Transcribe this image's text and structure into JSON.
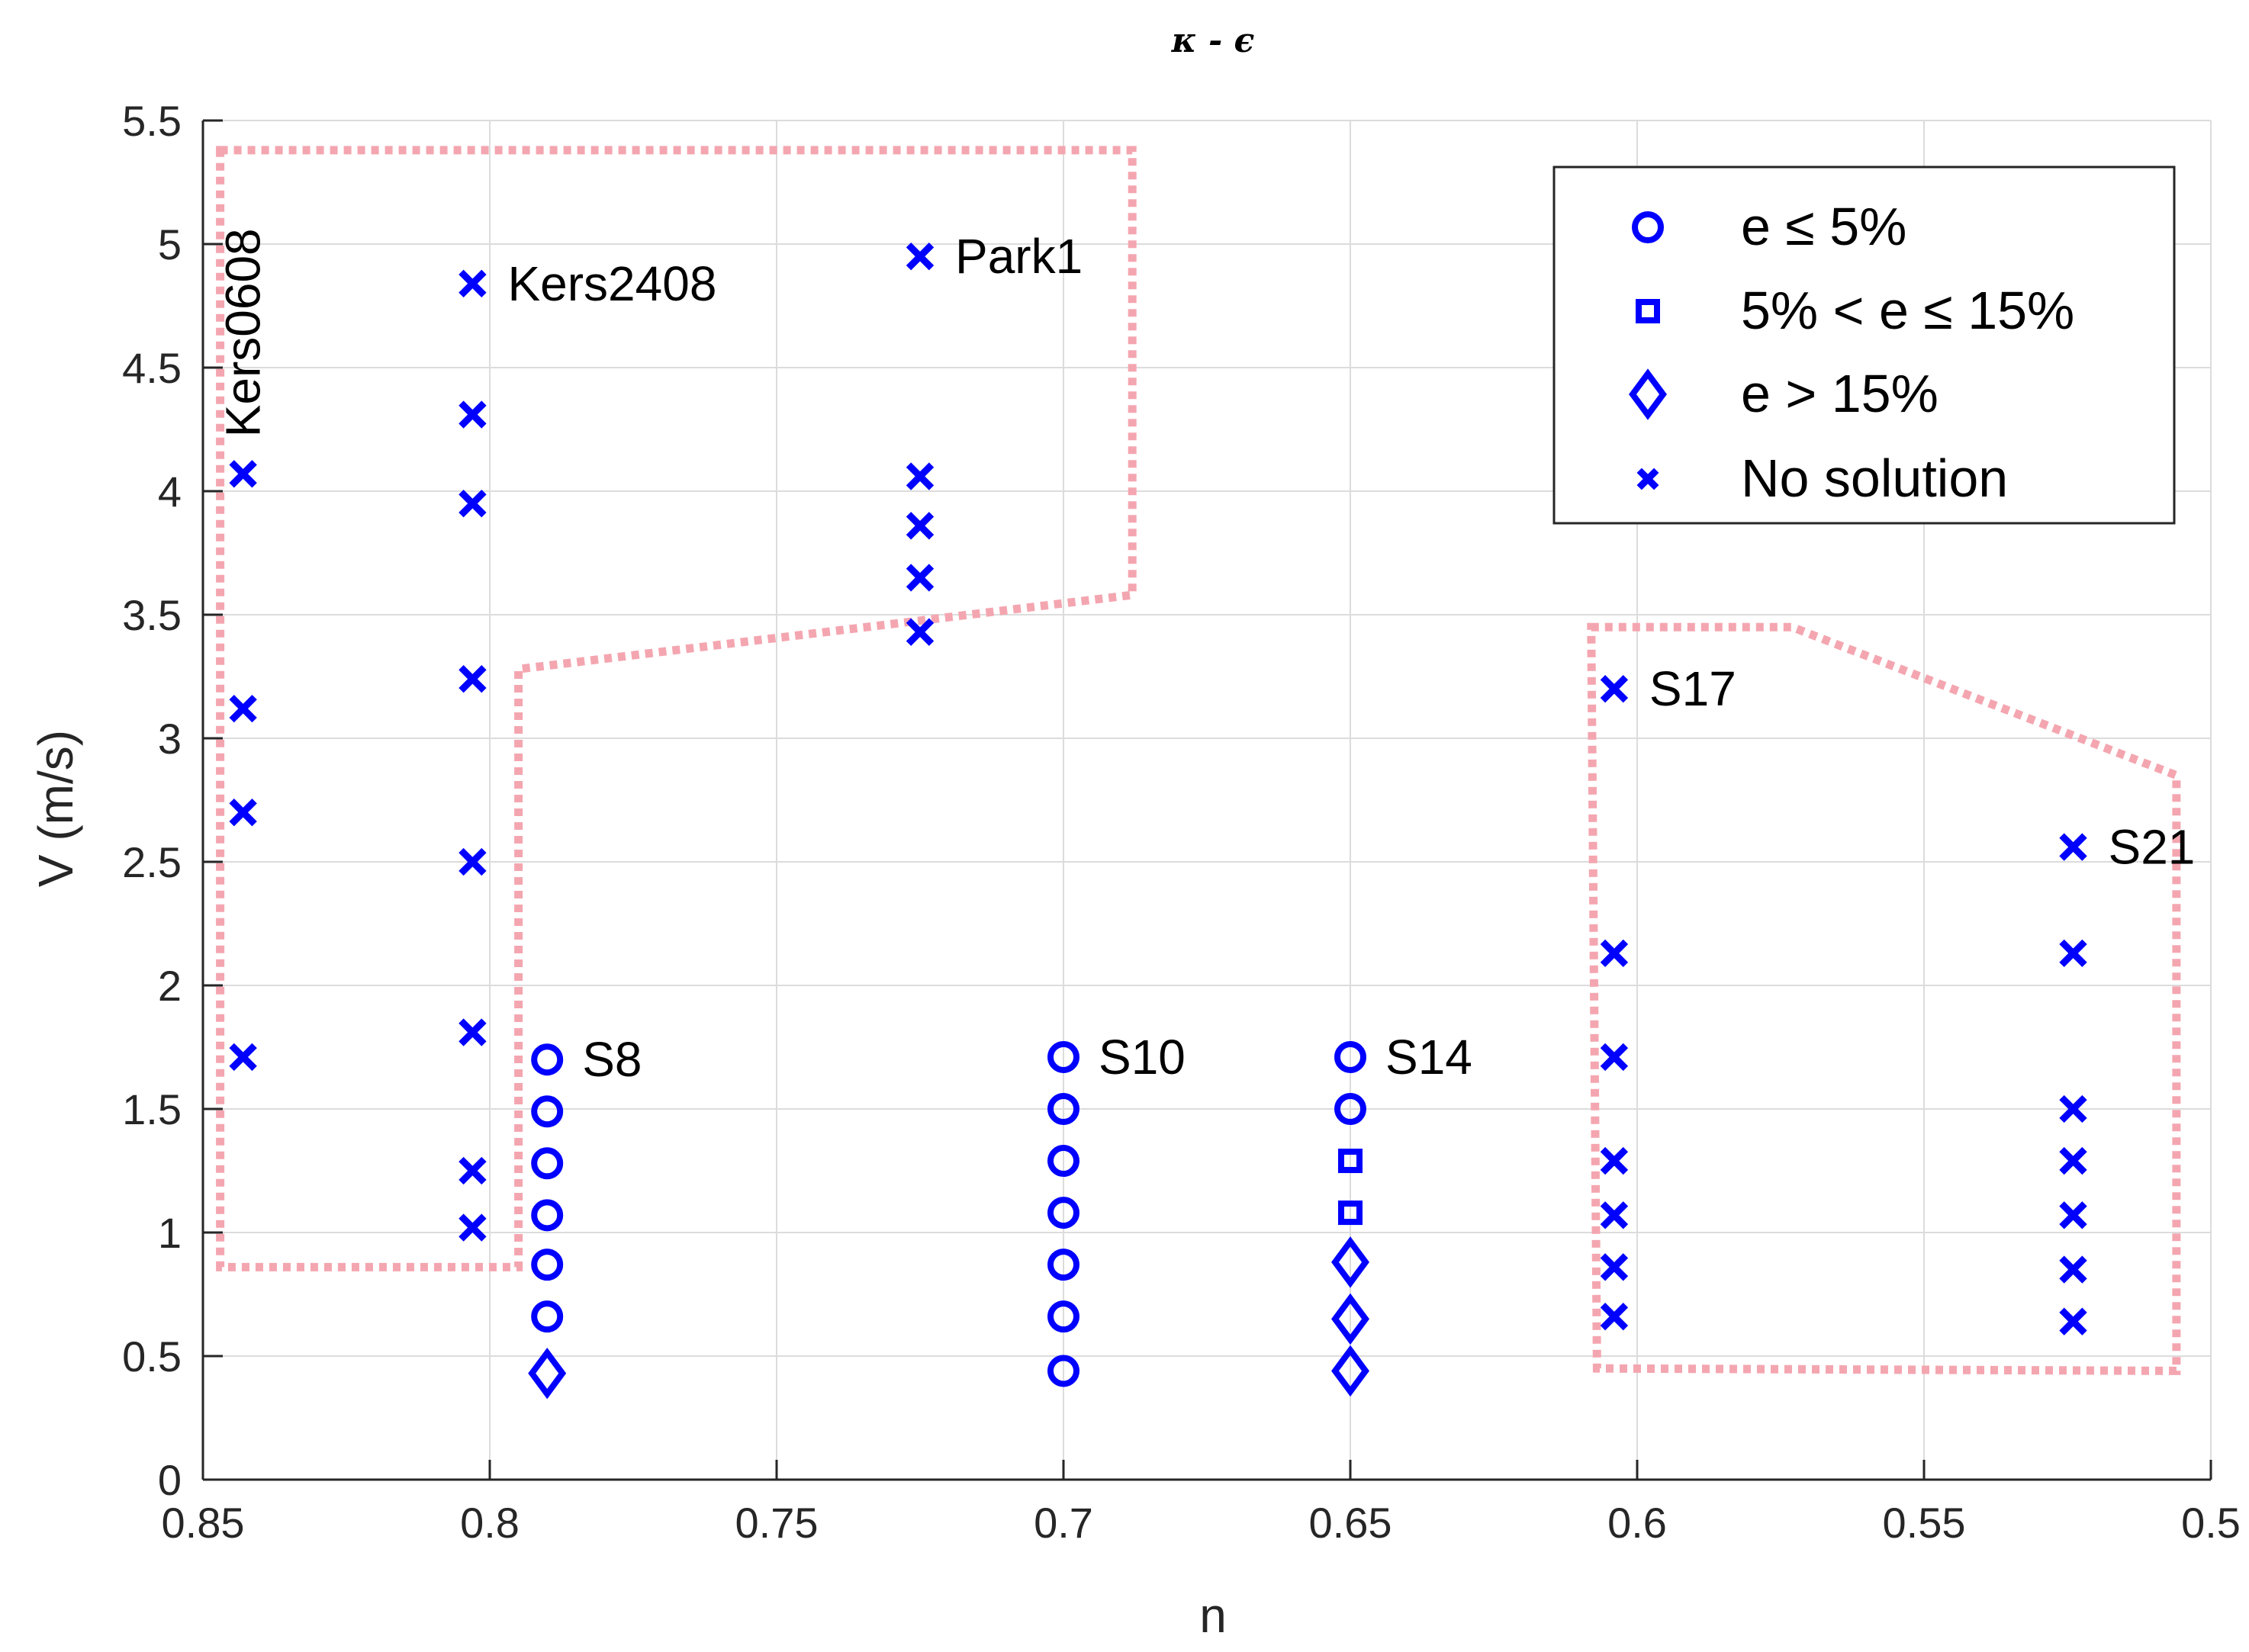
{
  "chart_data": {
    "type": "scatter",
    "title": "κ - ϵ",
    "xlabel": "n",
    "ylabel": "V (m/s)",
    "xlim": [
      0.85,
      0.5
    ],
    "ylim": [
      0,
      5.5
    ],
    "x_reversed": true,
    "x_ticks": [
      0.85,
      0.8,
      0.75,
      0.7,
      0.65,
      0.6,
      0.55,
      0.5
    ],
    "x_tick_labels": [
      "0.85",
      "0.8",
      "0.75",
      "0.7",
      "0.65",
      "0.6",
      "0.55",
      "0.5"
    ],
    "y_ticks": [
      0,
      0.5,
      1,
      1.5,
      2,
      2.5,
      3,
      3.5,
      4,
      4.5,
      5,
      5.5
    ],
    "y_tick_labels": [
      "0",
      "0.5",
      "1",
      "1.5",
      "2",
      "2.5",
      "3",
      "3.5",
      "4",
      "4.5",
      "5",
      "5.5"
    ],
    "grid": true,
    "legend_position": "top-right",
    "marker_color": "#0000ff",
    "region_color": "#f4a6b0",
    "series": [
      {
        "name": "e ≤ 5%",
        "marker": "circle",
        "x": [
          0.79,
          0.79,
          0.79,
          0.79,
          0.79,
          0.79,
          0.7,
          0.7,
          0.7,
          0.7,
          0.7,
          0.7,
          0.7,
          0.65,
          0.65
        ],
        "y": [
          1.7,
          1.49,
          1.28,
          1.07,
          0.87,
          0.66,
          1.71,
          1.5,
          1.29,
          1.08,
          0.87,
          0.66,
          0.44,
          1.71,
          1.5
        ]
      },
      {
        "name": "5% < e ≤ 15%",
        "marker": "square",
        "x": [
          0.65,
          0.65
        ],
        "y": [
          1.29,
          1.08
        ]
      },
      {
        "name": "e > 15%",
        "marker": "diamond",
        "x": [
          0.79,
          0.65,
          0.65,
          0.65
        ],
        "y": [
          0.43,
          0.88,
          0.65,
          0.44
        ]
      },
      {
        "name": "No solution",
        "marker": "x",
        "x": [
          0.843,
          0.843,
          0.843,
          0.843,
          0.803,
          0.803,
          0.803,
          0.803,
          0.803,
          0.803,
          0.803,
          0.803,
          0.725,
          0.725,
          0.725,
          0.725,
          0.725,
          0.604,
          0.604,
          0.604,
          0.604,
          0.604,
          0.604,
          0.604,
          0.524,
          0.524,
          0.524,
          0.524,
          0.524,
          0.524,
          0.524
        ],
        "y": [
          4.07,
          3.12,
          2.7,
          1.71,
          4.84,
          4.31,
          3.95,
          3.24,
          2.5,
          1.81,
          1.25,
          1.02,
          4.95,
          4.06,
          3.86,
          3.65,
          3.43,
          3.2,
          2.13,
          1.71,
          1.29,
          1.07,
          0.86,
          0.66,
          2.56,
          2.13,
          1.5,
          1.29,
          1.07,
          0.85,
          0.64
        ]
      }
    ],
    "annotations": [
      {
        "text": "Kers0608",
        "x": 0.843,
        "y": 4.07,
        "rotated": true
      },
      {
        "text": "Kers2408",
        "x": 0.803,
        "y": 4.84
      },
      {
        "text": "Park1",
        "x": 0.725,
        "y": 4.95
      },
      {
        "text": "S8",
        "x": 0.79,
        "y": 1.7
      },
      {
        "text": "S10",
        "x": 0.7,
        "y": 1.71
      },
      {
        "text": "S14",
        "x": 0.65,
        "y": 1.71
      },
      {
        "text": "S17",
        "x": 0.604,
        "y": 3.2
      },
      {
        "text": "S21",
        "x": 0.524,
        "y": 2.56
      }
    ],
    "regions": [
      {
        "points": [
          [
            0.847,
            5.38
          ],
          [
            0.688,
            5.38
          ],
          [
            0.688,
            3.58
          ],
          [
            0.795,
            3.28
          ],
          [
            0.795,
            0.86
          ],
          [
            0.847,
            0.86
          ]
        ]
      },
      {
        "points": [
          [
            0.608,
            3.45
          ],
          [
            0.573,
            3.45
          ],
          [
            0.506,
            2.85
          ],
          [
            0.506,
            0.44
          ],
          [
            0.607,
            0.45
          ]
        ]
      }
    ]
  }
}
